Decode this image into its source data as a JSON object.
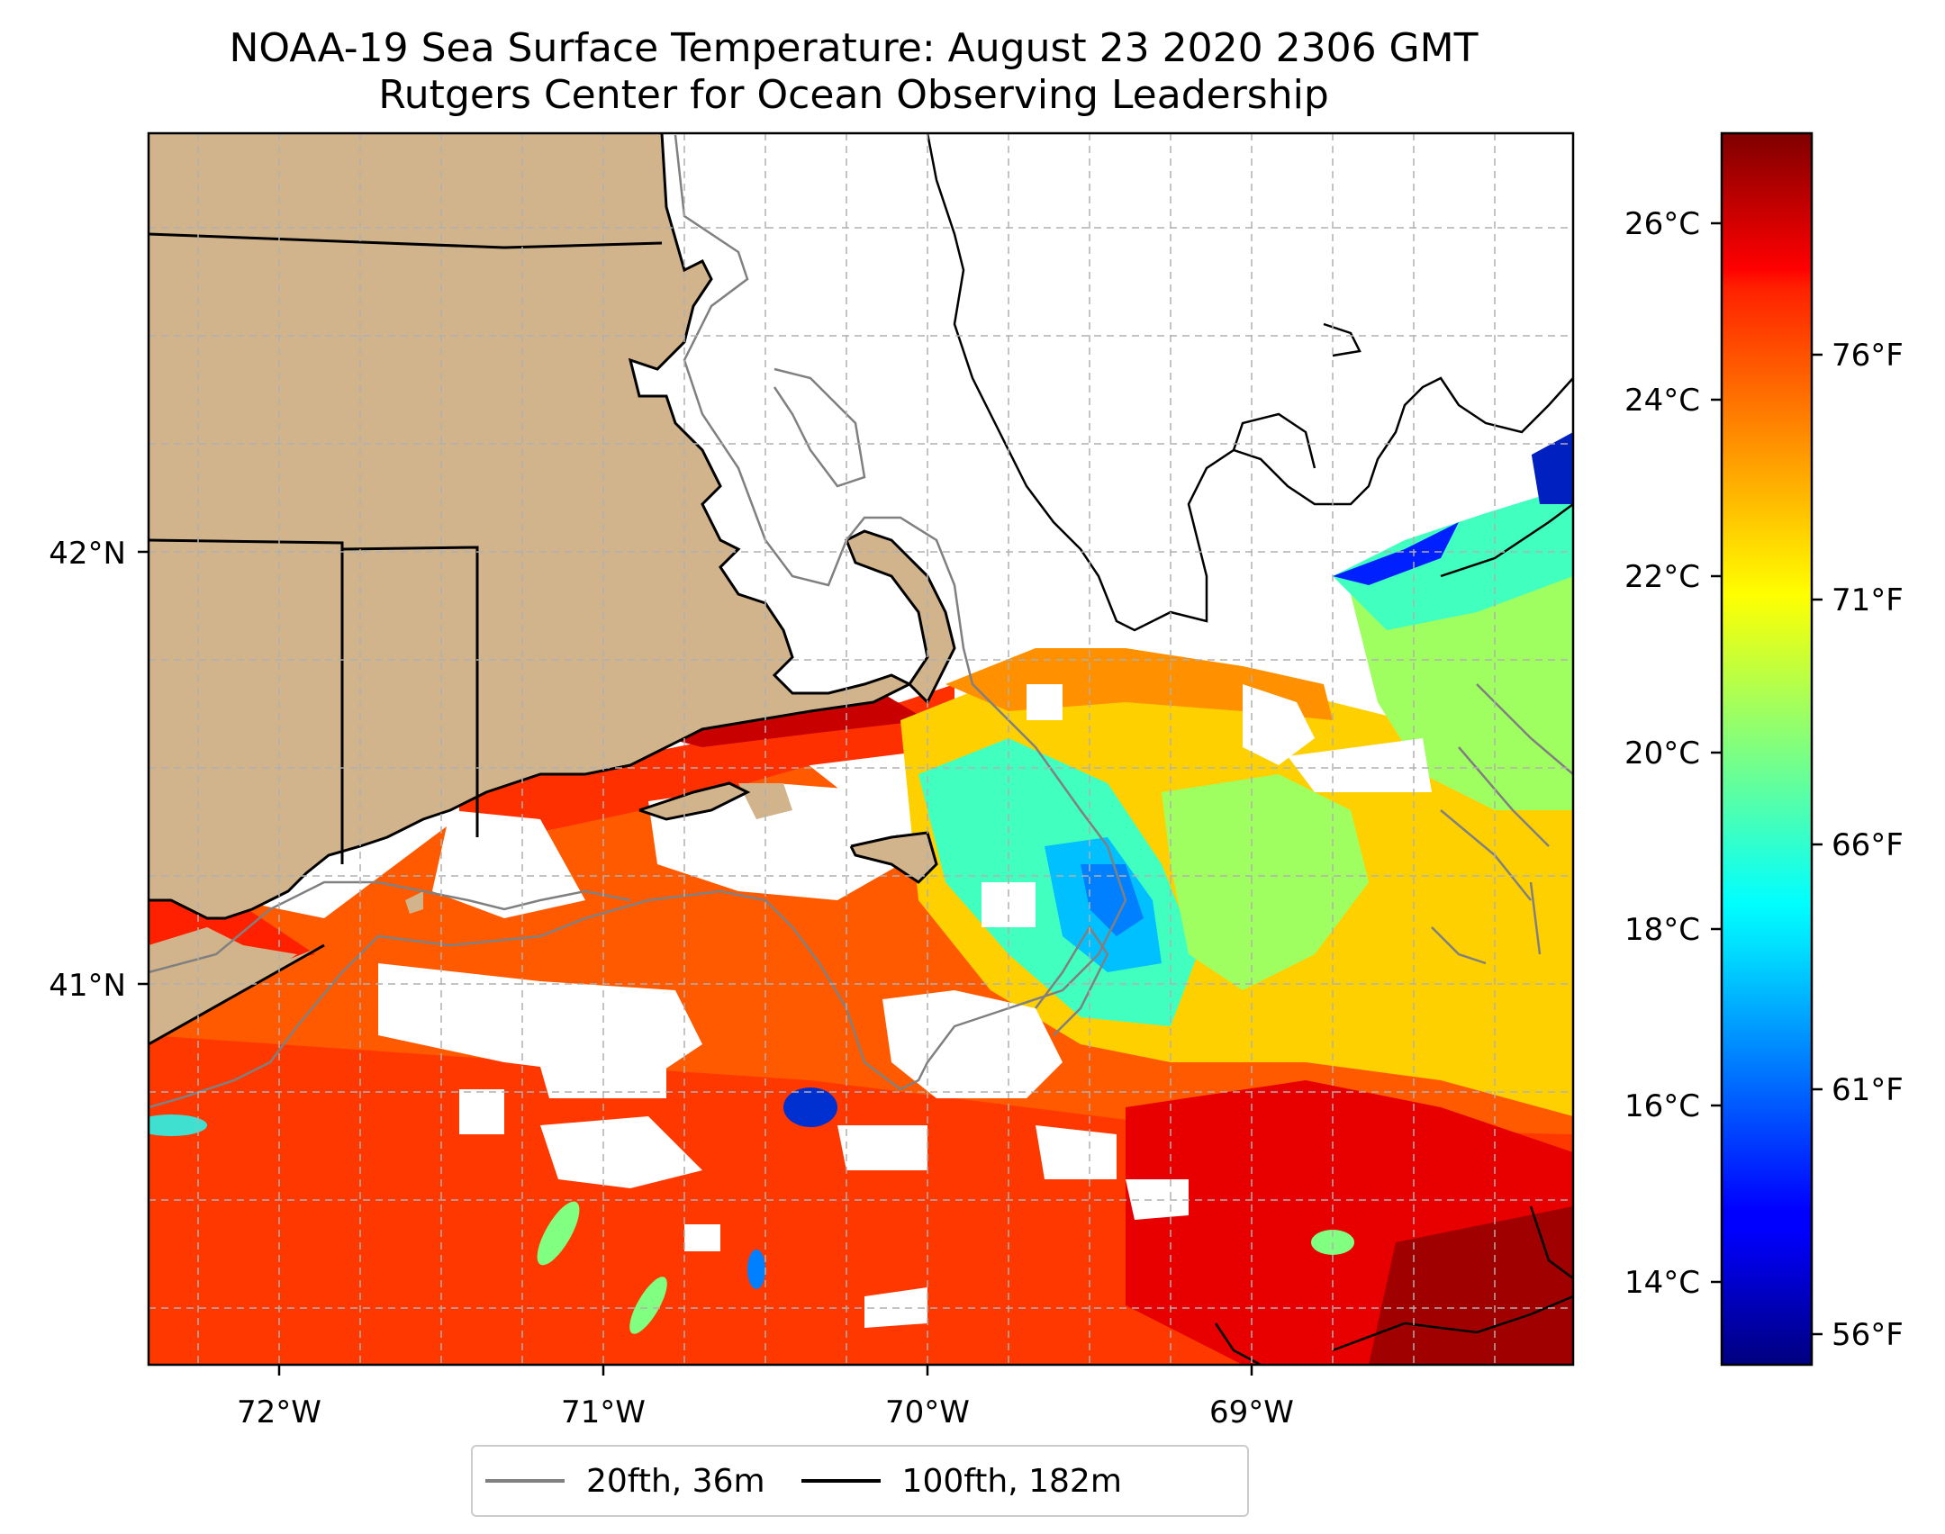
{
  "title": {
    "line1": "NOAA-19 Sea Surface Temperature: August 23 2020 2306 GMT",
    "line2": "Rutgers Center for Ocean Observing Leadership"
  },
  "map": {
    "lon_labels": [
      "72°W",
      "71°W",
      "70°W",
      "69°W"
    ],
    "lat_labels": [
      "42°N",
      "41°N"
    ],
    "land_color": "#d2b48c",
    "gridline_color": "#b0b0b0"
  },
  "colorbar": {
    "colormap": "jet",
    "celsius_labels": [
      "26°C",
      "24°C",
      "22°C",
      "20°C",
      "18°C",
      "16°C",
      "14°C"
    ],
    "fahrenheit_labels": [
      "76°F",
      "71°F",
      "66°F",
      "61°F",
      "56°F"
    ]
  },
  "legend": {
    "items": [
      {
        "label": "20fth, 36m",
        "color": "#808080"
      },
      {
        "label": "100fth, 182m",
        "color": "#000000"
      }
    ]
  }
}
